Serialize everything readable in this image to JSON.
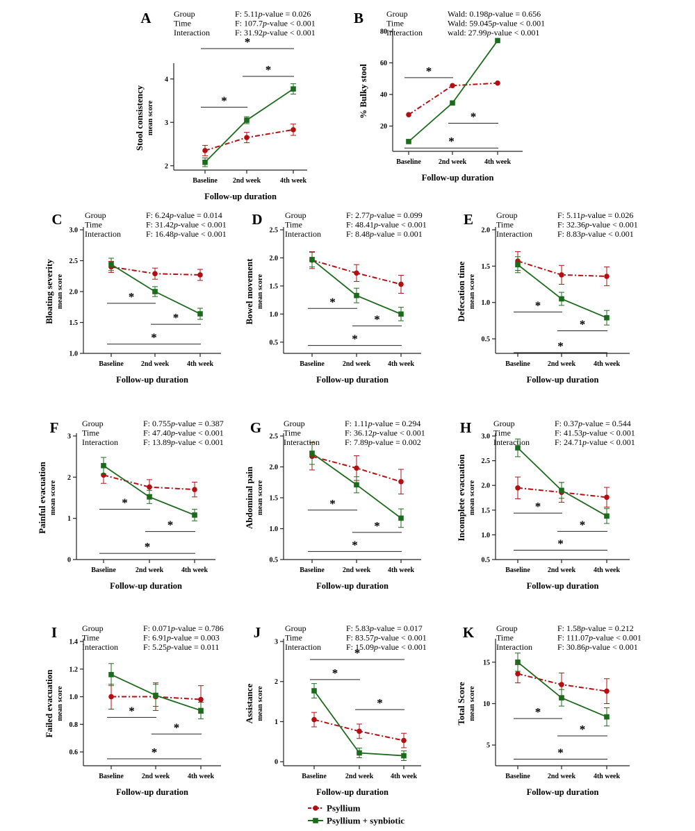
{
  "colors": {
    "psyllium": "#b30f12",
    "synbiotic": "#1c6b1c",
    "axis": "#222222"
  },
  "legend": [
    {
      "label": "Psyllium",
      "color": "#b30f12",
      "marker": "circle",
      "dash": true
    },
    {
      "label": "Psyllium + synbiotic",
      "color": "#1c6b1c",
      "marker": "square",
      "dash": false
    }
  ],
  "chart_data": [
    {
      "id": "A",
      "type": "line",
      "panel_label": "A",
      "stats": [
        [
          "Group",
          "F: 5.11",
          "p",
          "-value = 0.026"
        ],
        [
          "Time",
          "F: 107.7",
          "p",
          "-value < 0.001"
        ],
        [
          "Interaction",
          "F: 31.92",
          "p",
          "-value < 0.001"
        ]
      ],
      "ylabel": "Stool consistency",
      "ylabel2": "mean score",
      "xlabel": "Follow-up duration",
      "categories": [
        "Baseline",
        "2nd week",
        "4th week"
      ],
      "ylim": [
        1.9,
        4.3
      ],
      "yticks": [
        "2",
        "3",
        "4"
      ],
      "series": [
        {
          "name": "Psyllium",
          "values": [
            2.35,
            2.65,
            2.83
          ],
          "err": [
            0.12,
            0.12,
            0.13
          ]
        },
        {
          "name": "Psyllium + synbiotic",
          "values": [
            2.08,
            3.05,
            3.77
          ],
          "err": [
            0.1,
            0.08,
            0.12
          ]
        }
      ],
      "brackets": [
        {
          "from": 0,
          "to": 1,
          "y": 3.35,
          "label": "*"
        },
        {
          "from": 1,
          "to": 2,
          "y": 4.06,
          "label": "*"
        },
        {
          "from": 0,
          "to": 2,
          "y": 4.7,
          "label": "*"
        }
      ]
    },
    {
      "id": "B",
      "type": "line",
      "panel_label": "B",
      "stats": [
        [
          "Group",
          "Wald: 0.198",
          "p",
          "-value = 0.656"
        ],
        [
          "Time",
          "Wald: 59.045",
          "p",
          "-value < 0.001"
        ],
        [
          "Interaction",
          "wald: 27.99",
          "p",
          "-value < 0.001"
        ]
      ],
      "ylabel": "% Bulky stool",
      "ylabel2": "",
      "xlabel": "Follow-up duration",
      "categories": [
        "Baseline",
        "2nd week",
        "4th week"
      ],
      "ylim": [
        4,
        80
      ],
      "yticks": [
        "20",
        "40",
        "60",
        "80"
      ],
      "series": [
        {
          "name": "Psyllium",
          "values": [
            27.2,
            45.6,
            47.2
          ],
          "err": [
            0,
            0,
            0
          ]
        },
        {
          "name": "Psyllium + synbiotic",
          "values": [
            10.2,
            34.6,
            74.1
          ],
          "err": [
            0,
            0,
            0
          ]
        }
      ],
      "brackets": [
        {
          "from": 0,
          "to": 1,
          "y": 50.6,
          "label": "*"
        },
        {
          "from": 1,
          "to": 2,
          "y": 21.8,
          "label": "*"
        },
        {
          "from": 0,
          "to": 2,
          "y": 6.1,
          "label": "*"
        }
      ]
    },
    {
      "id": "C",
      "type": "line",
      "panel_label": "C",
      "stats": [
        [
          "Group",
          "F: 6.24",
          "p",
          "-value = 0.014"
        ],
        [
          "Time",
          "F: 31.42",
          "p",
          "-value < 0.001"
        ],
        [
          "Interaction",
          "F: 16.48",
          "p",
          "-value < 0.001"
        ]
      ],
      "ylabel": "Bloating severity",
      "ylabel2": "mean score",
      "xlabel": "Follow-up duration",
      "categories": [
        "Baseline",
        "2nd  week",
        "4th week"
      ],
      "ylim": [
        1.0,
        3.0
      ],
      "yticks": [
        "1.0",
        "1.5",
        "2.0",
        "2.5",
        "3.0"
      ],
      "series": [
        {
          "name": "Psyllium",
          "values": [
            2.4,
            2.29,
            2.27
          ],
          "err": [
            0.09,
            0.09,
            0.09
          ]
        },
        {
          "name": "Psyllium + synbiotic",
          "values": [
            2.44,
            2.0,
            1.64
          ],
          "err": [
            0.1,
            0.08,
            0.09
          ]
        }
      ],
      "brackets": [
        {
          "from": 0,
          "to": 1,
          "y": 1.81,
          "label": "*"
        },
        {
          "from": 1,
          "to": 2,
          "y": 1.47,
          "label": "*"
        },
        {
          "from": 0,
          "to": 2,
          "y": 1.15,
          "label": "*"
        }
      ]
    },
    {
      "id": "D",
      "type": "line",
      "panel_label": "D",
      "stats": [
        [
          "Group",
          "F: 2.77",
          "p",
          "-value = 0.099"
        ],
        [
          "Time",
          "F: 48.41",
          "p",
          "-value < 0.001"
        ],
        [
          "Interaction",
          "F: 8.48",
          "p",
          "-value = 0.001"
        ]
      ],
      "ylabel": "Bowel movement",
      "ylabel2": "mean score",
      "xlabel": "Follow-up duration",
      "categories": [
        "Baseline",
        "2nd week",
        "4th week"
      ],
      "ylim": [
        0.3,
        2.5
      ],
      "yticks": [
        "0.5",
        "1.0",
        "1.5",
        "2.0",
        "2.5"
      ],
      "series": [
        {
          "name": "Psyllium",
          "values": [
            1.96,
            1.73,
            1.53
          ],
          "err": [
            0.15,
            0.15,
            0.16
          ]
        },
        {
          "name": "Psyllium + synbiotic",
          "values": [
            1.97,
            1.33,
            1.0
          ],
          "err": [
            0.13,
            0.13,
            0.12
          ]
        }
      ],
      "brackets": [
        {
          "from": 0,
          "to": 1,
          "y": 1.1,
          "label": "*"
        },
        {
          "from": 1,
          "to": 2,
          "y": 0.79,
          "label": "*"
        },
        {
          "from": 0,
          "to": 2,
          "y": 0.44,
          "label": "*"
        }
      ]
    },
    {
      "id": "E",
      "type": "line",
      "panel_label": "E",
      "stats": [
        [
          "Group",
          "F: 5.11",
          "p",
          "-value = 0.026"
        ],
        [
          "Time",
          "F: 32.36",
          "p",
          "-value < 0.001"
        ],
        [
          "Interaction",
          "F: 8.83",
          "p",
          "-value < 0.001"
        ]
      ],
      "ylabel": "Defecation time",
      "ylabel2": "mean score",
      "xlabel": "Follow-up duration",
      "categories": [
        "Baseline",
        "2nd week",
        "4th week"
      ],
      "ylim": [
        0.3,
        2.0
      ],
      "yticks": [
        "0.5",
        "1.0",
        "1.5",
        "2.0"
      ],
      "series": [
        {
          "name": "Psyllium",
          "values": [
            1.57,
            1.38,
            1.36
          ],
          "err": [
            0.13,
            0.13,
            0.13
          ]
        },
        {
          "name": "Psyllium + synbiotic",
          "values": [
            1.52,
            1.05,
            0.79
          ],
          "err": [
            0.11,
            0.09,
            0.1
          ]
        }
      ],
      "brackets": [
        {
          "from": 0,
          "to": 1,
          "y": 0.87,
          "label": "*"
        },
        {
          "from": 1,
          "to": 2,
          "y": 0.61,
          "label": "*"
        },
        {
          "from": 0,
          "to": 2,
          "y": 0.31,
          "label": "*"
        }
      ]
    },
    {
      "id": "F",
      "type": "line",
      "panel_label": "F",
      "stats": [
        [
          "Group",
          "F: 0.755",
          "p",
          "-value = 0.387"
        ],
        [
          "Time",
          "F: 47.40",
          "p",
          "-value < 0.001"
        ],
        [
          "Interaction",
          "F: 13.89",
          "p",
          "-value < 0.001"
        ]
      ],
      "ylabel": "Painful evacuation",
      "ylabel2": "mean score",
      "xlabel": "Follow-up duration",
      "categories": [
        "Baseline",
        "2nd week",
        "4th week"
      ],
      "ylim": [
        0,
        3
      ],
      "yticks": [
        "0",
        "1",
        "2",
        "3"
      ],
      "series": [
        {
          "name": "Psyllium",
          "values": [
            2.05,
            1.76,
            1.7
          ],
          "err": [
            0.2,
            0.18,
            0.18
          ]
        },
        {
          "name": "Psyllium + synbiotic",
          "values": [
            2.28,
            1.52,
            1.08
          ],
          "err": [
            0.2,
            0.16,
            0.14
          ]
        }
      ],
      "brackets": [
        {
          "from": 0,
          "to": 1,
          "y": 1.22,
          "label": "*"
        },
        {
          "from": 1,
          "to": 2,
          "y": 0.68,
          "label": "*"
        },
        {
          "from": 0,
          "to": 2,
          "y": 0.15,
          "label": "*"
        }
      ]
    },
    {
      "id": "G",
      "type": "line",
      "panel_label": "G",
      "stats": [
        [
          "Group",
          "F: 1.11",
          "p",
          "-value = 0.294"
        ],
        [
          "Time",
          "F: 36.12",
          "p",
          "-value < 0.001"
        ],
        [
          "Interaction",
          "F: 7.89",
          "p",
          "-value = 0.002"
        ]
      ],
      "ylabel": "Abdominal pain",
      "ylabel2": "mean score",
      "xlabel": "Follow-up duration",
      "categories": [
        "Baseline",
        "2nd week",
        "4th week"
      ],
      "ylim": [
        0.5,
        2.5
      ],
      "yticks": [
        "0.5",
        "1.0",
        "1.5",
        "2.0",
        "2.5"
      ],
      "series": [
        {
          "name": "Psyllium",
          "values": [
            2.17,
            1.98,
            1.76
          ],
          "err": [
            0.22,
            0.2,
            0.2
          ]
        },
        {
          "name": "Psyllium + synbiotic",
          "values": [
            2.22,
            1.71,
            1.17
          ],
          "err": [
            0.18,
            0.13,
            0.15
          ]
        }
      ],
      "brackets": [
        {
          "from": 0,
          "to": 1,
          "y": 1.3,
          "label": "*"
        },
        {
          "from": 1,
          "to": 2,
          "y": 0.94,
          "label": "*"
        },
        {
          "from": 0,
          "to": 2,
          "y": 0.63,
          "label": "*"
        }
      ]
    },
    {
      "id": "H",
      "type": "line",
      "panel_label": "H",
      "stats": [
        [
          "Group",
          "F: 0.37",
          "p",
          "-value = 0.544"
        ],
        [
          "Time",
          "F: 41.53",
          "p",
          "-value < 0.001"
        ],
        [
          "Interaction",
          "F: 24.71",
          "p",
          "-value < 0.001"
        ]
      ],
      "ylabel": "Incomplete evacuation",
      "ylabel2": "mean score",
      "xlabel": "Follow-up duration",
      "categories": [
        "Baseline",
        "2nd week",
        "4th week"
      ],
      "ylim": [
        0.5,
        3.0
      ],
      "yticks": [
        "0.5",
        "1.0",
        "1.5",
        "2.0",
        "2.5",
        "3.0"
      ],
      "series": [
        {
          "name": "Psyllium",
          "values": [
            1.95,
            1.86,
            1.76
          ],
          "err": [
            0.22,
            0.2,
            0.2
          ]
        },
        {
          "name": "Psyllium + synbiotic",
          "values": [
            2.76,
            1.9,
            1.38
          ],
          "err": [
            0.18,
            0.16,
            0.15
          ]
        }
      ],
      "brackets": [
        {
          "from": 0,
          "to": 1,
          "y": 1.44,
          "label": "*"
        },
        {
          "from": 1,
          "to": 2,
          "y": 1.07,
          "label": "*"
        },
        {
          "from": 0,
          "to": 2,
          "y": 0.69,
          "label": "*"
        }
      ]
    },
    {
      "id": "I",
      "type": "line",
      "panel_label": "I",
      "stats": [
        [
          "Group",
          "F: 0.071",
          "p",
          "-value = 0.786"
        ],
        [
          "Time",
          "F: 6.91",
          "p",
          "-value = 0.003"
        ],
        [
          "Interaction",
          "F: 5.25",
          "p",
          "-value = 0.011"
        ]
      ],
      "ylabel": "Failed evacuation",
      "ylabel2": "mean score",
      "xlabel": "Follow-up duration",
      "categories": [
        "Baseline",
        "2nd week",
        "4th week"
      ],
      "ylim": [
        0.5,
        1.4
      ],
      "yticks": [
        "0.6",
        "0.8",
        "1.0",
        "1.2",
        "1.4"
      ],
      "series": [
        {
          "name": "Psyllium",
          "values": [
            1.0,
            1.0,
            0.98
          ],
          "err": [
            0.09,
            0.1,
            0.1
          ]
        },
        {
          "name": "Psyllium + synbiotic",
          "values": [
            1.16,
            1.01,
            0.9
          ],
          "err": [
            0.08,
            0.08,
            0.06
          ]
        }
      ],
      "brackets": [
        {
          "from": 0,
          "to": 1,
          "y": 0.85,
          "label": "*"
        },
        {
          "from": 1,
          "to": 2,
          "y": 0.73,
          "label": "*"
        },
        {
          "from": 0,
          "to": 2,
          "y": 0.55,
          "label": "*"
        }
      ]
    },
    {
      "id": "J",
      "type": "line",
      "panel_label": "J",
      "stats": [
        [
          "Group",
          "F: 5.83",
          "p",
          "-value = 0.017"
        ],
        [
          "Time",
          "F: 83.57",
          "p",
          "-value < 0.001"
        ],
        [
          "Interaction",
          "F: 15.09",
          "p",
          "-value < 0.001"
        ]
      ],
      "ylabel": "Assistance",
      "ylabel2": "mean score",
      "xlabel": "Follow-up duration",
      "categories": [
        "Baseline",
        "2nd week",
        "4th week"
      ],
      "ylim": [
        -0.1,
        3
      ],
      "yticks": [
        "0",
        "1",
        "2",
        "3"
      ],
      "series": [
        {
          "name": "Psyllium",
          "values": [
            1.05,
            0.76,
            0.53
          ],
          "err": [
            0.18,
            0.18,
            0.18
          ]
        },
        {
          "name": "Psyllium + synbiotic",
          "values": [
            1.77,
            0.22,
            0.15
          ],
          "err": [
            0.18,
            0.12,
            0.12
          ]
        }
      ],
      "brackets": [
        {
          "from": 0,
          "to": 1,
          "y": 2.05,
          "label": "*"
        },
        {
          "from": 1,
          "to": 2,
          "y": 1.3,
          "label": "*"
        },
        {
          "from": 0,
          "to": 2,
          "y": 2.55,
          "label": "*"
        }
      ]
    },
    {
      "id": "K",
      "type": "line",
      "panel_label": "K",
      "stats": [
        [
          "Group",
          "F: 1.58",
          "p",
          "-value = 0.212"
        ],
        [
          "Time",
          "F: 111.07",
          "p",
          "-value < 0.001"
        ],
        [
          "Interaction",
          "F: 30.86",
          "p",
          "-value < 0.001"
        ]
      ],
      "ylabel": "Total Score",
      "ylabel2": "mean score",
      "xlabel": "Follow-up duration",
      "categories": [
        "Baseline",
        "2nd week",
        "4th week"
      ],
      "ylim": [
        2.5,
        17.5
      ],
      "yticks": [
        "5",
        "10",
        "15"
      ],
      "series": [
        {
          "name": "Psyllium",
          "values": [
            13.6,
            12.3,
            11.5
          ],
          "err": [
            1.1,
            1.4,
            1.5
          ]
        },
        {
          "name": "Psyllium + synbiotic",
          "values": [
            15.0,
            10.7,
            8.4
          ],
          "err": [
            1.1,
            1.0,
            1.1
          ]
        }
      ],
      "brackets": [
        {
          "from": 0,
          "to": 1,
          "y": 8.2,
          "label": "*"
        },
        {
          "from": 1,
          "to": 2,
          "y": 6.1,
          "label": "*"
        },
        {
          "from": 0,
          "to": 2,
          "y": 3.3,
          "label": "*"
        }
      ]
    }
  ]
}
